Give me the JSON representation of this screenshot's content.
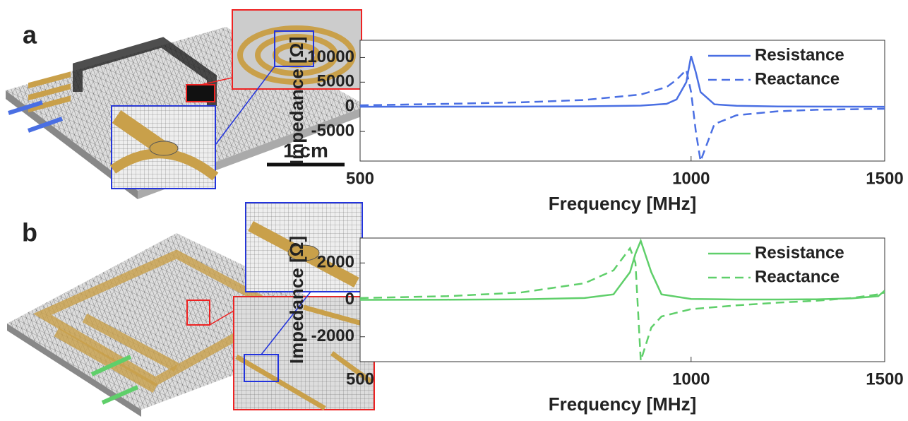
{
  "figure": {
    "panels": [
      {
        "label": "a",
        "scale_bar": "1 cm"
      },
      {
        "label": "b"
      }
    ]
  },
  "chart_data": [
    {
      "type": "line",
      "x_label": "Frequency [MHz]",
      "y_label": "Impedance [Ω]",
      "x": [
        500,
        600,
        700,
        800,
        900,
        950,
        970,
        990,
        1000,
        1010,
        1020,
        1050,
        1100,
        1200,
        1300,
        1500
      ],
      "series": [
        {
          "name": "Resistance",
          "color": "#4a6fe3",
          "line_style": "solid",
          "values": [
            20,
            30,
            50,
            100,
            250,
            600,
            1500,
            5000,
            10300,
            7000,
            3000,
            500,
            200,
            80,
            40,
            20
          ]
        },
        {
          "name": "Reactance",
          "color": "#4a6fe3",
          "line_style": "dashed",
          "values": [
            300,
            600,
            900,
            1400,
            2500,
            4000,
            5500,
            7500,
            3000,
            -5000,
            -11000,
            -3500,
            -1700,
            -900,
            -600,
            -400
          ]
        }
      ],
      "xlim": [
        500,
        1500
      ],
      "xticks": [
        500,
        1000,
        1500
      ],
      "x_scale": "log",
      "ylim": [
        -11000,
        13500
      ],
      "yticks": [
        -5000,
        0,
        5000,
        10000
      ],
      "grid": false,
      "legend": "upper-right"
    },
    {
      "type": "line",
      "x_label": "Frequency [MHz]",
      "y_label": "Impedance [Ω]",
      "x": [
        500,
        600,
        700,
        800,
        850,
        880,
        890,
        900,
        920,
        940,
        1000,
        1100,
        1200,
        1300,
        1400,
        1480,
        1500
      ],
      "series": [
        {
          "name": "Resistance",
          "color": "#5fcf6a",
          "line_style": "solid",
          "values": [
            0,
            10,
            30,
            100,
            300,
            1500,
            2500,
            3200,
            1500,
            300,
            50,
            20,
            20,
            30,
            80,
            200,
            500
          ]
        },
        {
          "name": "Reactance",
          "color": "#5fcf6a",
          "line_style": "dashed",
          "values": [
            100,
            200,
            400,
            900,
            1600,
            2800,
            2000,
            -3300,
            -1500,
            -900,
            -500,
            -300,
            -150,
            -50,
            100,
            300,
            400
          ]
        }
      ],
      "xlim": [
        500,
        1500
      ],
      "xticks": [
        500,
        1000,
        1500
      ],
      "x_scale": "log",
      "ylim": [
        -3350,
        3350
      ],
      "yticks": [
        -2000,
        0,
        2000
      ],
      "grid": false,
      "legend": "upper-right"
    }
  ]
}
